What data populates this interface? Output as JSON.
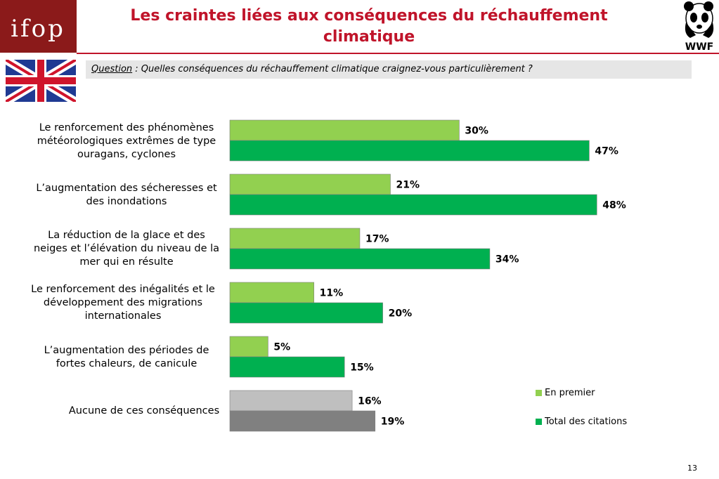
{
  "logo_text": "ifop",
  "title": "Les craintes liées aux conséquences du réchauffement climatique",
  "wwf_text": "WWF",
  "question": {
    "label": "Question",
    "text": " : Quelles conséquences du réchauffement climatique craignez-vous particulièrement ?"
  },
  "page_number": "13",
  "colors": {
    "title": "#c0142a",
    "en_premier": "#92d050",
    "total": "#00b050",
    "aucune_premier": "#bfbfbf",
    "aucune_total": "#808080"
  },
  "legend": [
    {
      "label": "En premier",
      "color": "#92d050"
    },
    {
      "label": "Total des citations",
      "color": "#00b050"
    }
  ],
  "chart_data": {
    "type": "bar",
    "orientation": "horizontal",
    "categories": [
      "Le renforcement des phénomènes météorologiques extrêmes de type ouragans, cyclones",
      "L’augmentation des sécheresses et des inondations",
      "La réduction de la glace et des neiges et l’élévation du niveau de la mer qui en résulte",
      "Le renforcement des inégalités et le développement des migrations internationales",
      "L’augmentation des périodes de fortes chaleurs, de canicule",
      "Aucune de ces conséquences"
    ],
    "series": [
      {
        "name": "En premier",
        "values": [
          30,
          21,
          17,
          11,
          5,
          16
        ],
        "labels": [
          "30%",
          "21%",
          "17%",
          "11%",
          "5%",
          "16%"
        ]
      },
      {
        "name": "Total des citations",
        "values": [
          47,
          48,
          34,
          20,
          15,
          19
        ],
        "labels": [
          "47%",
          "48%",
          "34%",
          "20%",
          "15%",
          "19%"
        ]
      }
    ],
    "value_suffix": "%",
    "legend_position": "right",
    "grid": false
  }
}
